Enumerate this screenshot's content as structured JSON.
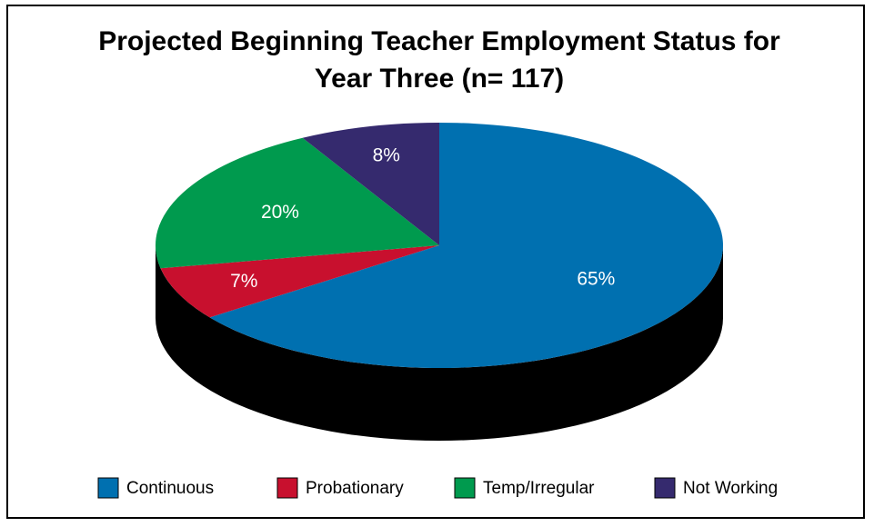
{
  "chart_data": {
    "type": "pie",
    "title": [
      "Projected Beginning Teacher Employment Status for",
      "Year Three (n= 117)"
    ],
    "categories": [
      "Continuous",
      "Probationary",
      "Temp/Irregular",
      "Not Working"
    ],
    "values": [
      65,
      7,
      20,
      8
    ],
    "value_labels": [
      "65%",
      "7%",
      "20%",
      "8%"
    ],
    "colors": [
      "#0070b0",
      "#c8102e",
      "#009a4e",
      "#352a6e"
    ],
    "legend": "bottom"
  }
}
